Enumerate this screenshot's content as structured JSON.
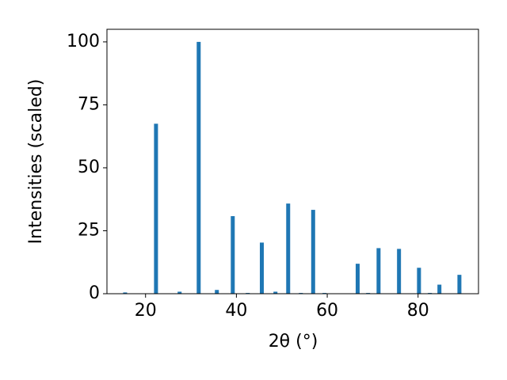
{
  "chart_data": {
    "type": "bar",
    "x_label": "2θ (°)",
    "y_label": "Intensities (scaled)",
    "x": [
      15.5,
      22.3,
      27.5,
      31.7,
      35.7,
      39.2,
      42.5,
      45.6,
      48.6,
      51.4,
      54.2,
      56.9,
      59.4,
      66.7,
      69.0,
      71.3,
      75.8,
      80.2,
      82.6,
      84.7,
      89.1
    ],
    "values": [
      0.5,
      67.5,
      0.8,
      100,
      1.5,
      30.8,
      0.3,
      20.3,
      0.8,
      35.8,
      0.3,
      33.3,
      0.3,
      11.9,
      0.3,
      18.1,
      17.8,
      10.3,
      0.3,
      3.6,
      7.5
    ],
    "color": "#1f77b4",
    "xlim": [
      11.5,
      93.3
    ],
    "xticks": [
      20,
      40,
      60,
      80
    ],
    "ylim": [
      0,
      105
    ],
    "yticks": [
      0,
      25,
      50,
      75,
      100
    ],
    "grid": false
  }
}
